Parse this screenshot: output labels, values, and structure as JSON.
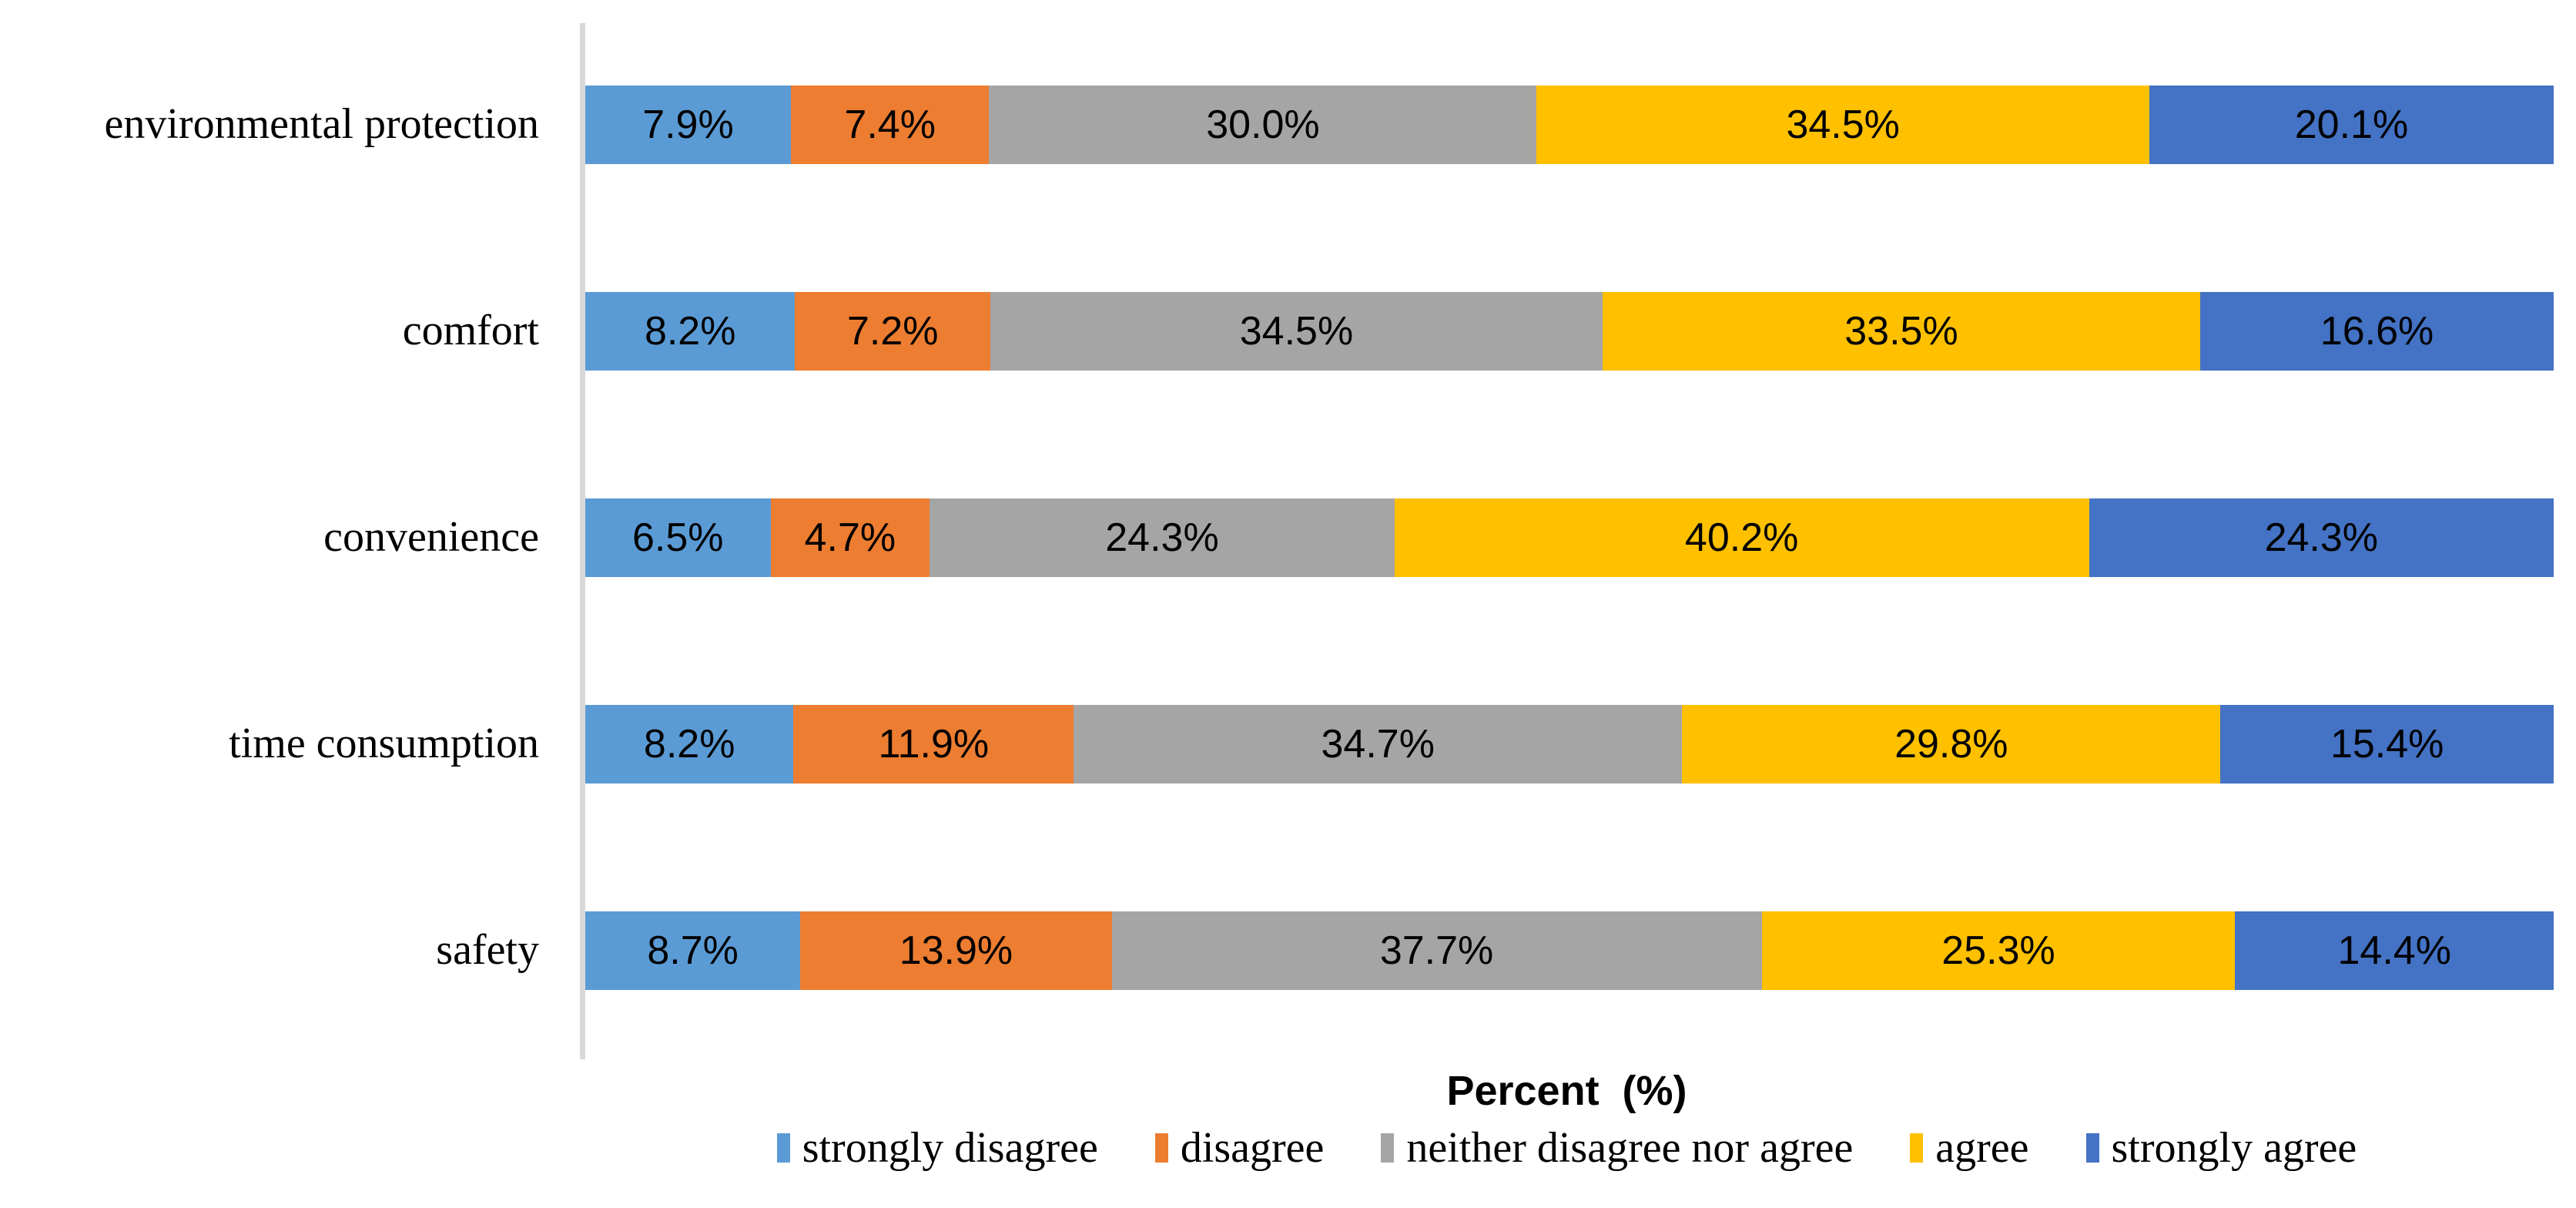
{
  "figure": {
    "background": "#ffffff",
    "axis_line_color": "#D9D9D9",
    "text_color": "#000000"
  },
  "chart_data": {
    "type": "bar",
    "orientation": "horizontal",
    "stacked": true,
    "title": "",
    "xlabel": "Percent  (%)",
    "ylabel": "",
    "value_suffix": "%",
    "value_decimals": 1,
    "xlim": [
      0,
      100
    ],
    "grid": false,
    "legend_position": "bottom",
    "categories": [
      "environmental protection",
      "comfort",
      "convenience",
      "time consumption",
      "safety"
    ],
    "series": [
      {
        "name": "strongly disagree",
        "color": "#5B9BD5",
        "values": [
          7.9,
          8.2,
          6.5,
          8.2,
          8.7
        ]
      },
      {
        "name": "disagree",
        "color": "#ED7D31",
        "values": [
          7.4,
          7.2,
          4.7,
          11.9,
          13.9
        ]
      },
      {
        "name": "neither disagree nor agree",
        "color": "#A5A5A5",
        "values": [
          30.0,
          34.5,
          24.3,
          34.7,
          37.7
        ]
      },
      {
        "name": "agree",
        "color": "#FFC000",
        "values": [
          34.5,
          33.5,
          40.2,
          29.8,
          25.3
        ]
      },
      {
        "name": "strongly agree",
        "color": "#4472C4",
        "values": [
          20.1,
          16.6,
          24.3,
          15.4,
          14.4
        ]
      }
    ]
  }
}
